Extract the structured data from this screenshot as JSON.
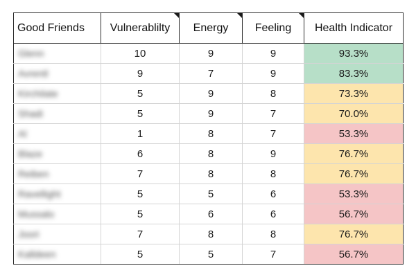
{
  "table": {
    "headers": [
      "Good Friends",
      "Vulnerablilty",
      "Energy",
      "Feeling",
      "Health Indicator"
    ],
    "rows": [
      {
        "name": "Glenn",
        "vulnerability": "10",
        "energy": "9",
        "feeling": "9",
        "health": "93.3%",
        "level": "high"
      },
      {
        "name": "Avrentl",
        "vulnerability": "9",
        "energy": "7",
        "feeling": "9",
        "health": "83.3%",
        "level": "high"
      },
      {
        "name": "Kirchilate",
        "vulnerability": "5",
        "energy": "9",
        "feeling": "8",
        "health": "73.3%",
        "level": "mid"
      },
      {
        "name": "Shadi",
        "vulnerability": "5",
        "energy": "9",
        "feeling": "7",
        "health": "70.0%",
        "level": "mid"
      },
      {
        "name": "Al",
        "vulnerability": "1",
        "energy": "8",
        "feeling": "7",
        "health": "53.3%",
        "level": "low"
      },
      {
        "name": "Blaze",
        "vulnerability": "6",
        "energy": "8",
        "feeling": "9",
        "health": "76.7%",
        "level": "mid"
      },
      {
        "name": "Reiben",
        "vulnerability": "7",
        "energy": "8",
        "feeling": "8",
        "health": "76.7%",
        "level": "mid"
      },
      {
        "name": "Ravellight",
        "vulnerability": "5",
        "energy": "5",
        "feeling": "6",
        "health": "53.3%",
        "level": "low"
      },
      {
        "name": "Mussalo",
        "vulnerability": "5",
        "energy": "6",
        "feeling": "6",
        "health": "56.7%",
        "level": "low"
      },
      {
        "name": "Joori",
        "vulnerability": "7",
        "energy": "8",
        "feeling": "8",
        "health": "76.7%",
        "level": "mid"
      },
      {
        "name": "Kalldeen",
        "vulnerability": "5",
        "energy": "5",
        "feeling": "7",
        "health": "56.7%",
        "level": "low"
      }
    ]
  },
  "colors": {
    "health_high": "#b7dfc8",
    "health_mid": "#fde5ad",
    "health_low": "#f5c5c6",
    "border": "#d4d4d4",
    "outline": "#2b2b2b"
  }
}
